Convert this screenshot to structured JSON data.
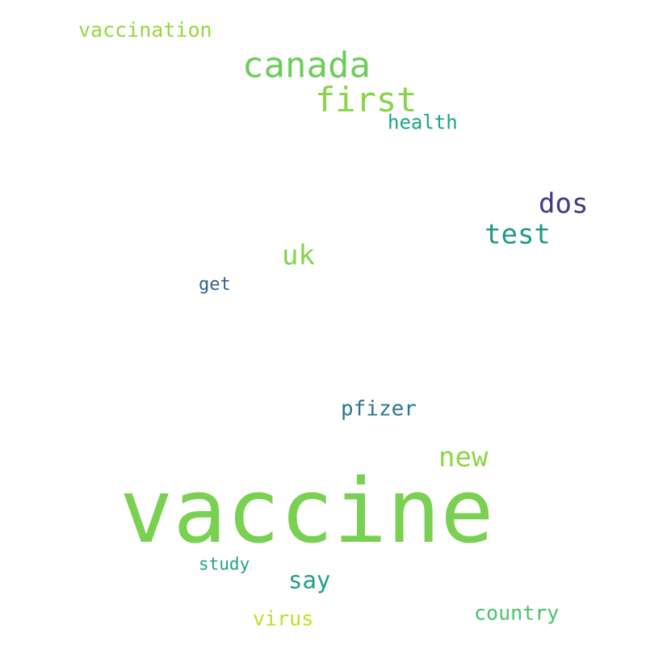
{
  "word_cloud": {
    "words": [
      {
        "text": "vaccine",
        "color": "#7ad151"
      },
      {
        "text": "canada",
        "color": "#6ccd5a"
      },
      {
        "text": "first",
        "color": "#86d549"
      },
      {
        "text": "vaccination",
        "color": "#95d840"
      },
      {
        "text": "health",
        "color": "#1fa187"
      },
      {
        "text": "dos",
        "color": "#443983"
      },
      {
        "text": "test",
        "color": "#1f9a8a"
      },
      {
        "text": "uk",
        "color": "#86d549"
      },
      {
        "text": "get",
        "color": "#34618d"
      },
      {
        "text": "pfizer",
        "color": "#2a788e"
      },
      {
        "text": "new",
        "color": "#8ed645"
      },
      {
        "text": "study",
        "color": "#20a486"
      },
      {
        "text": "say",
        "color": "#1f9e89"
      },
      {
        "text": "country",
        "color": "#4ac16d"
      },
      {
        "text": "virus",
        "color": "#c2df23"
      }
    ]
  }
}
